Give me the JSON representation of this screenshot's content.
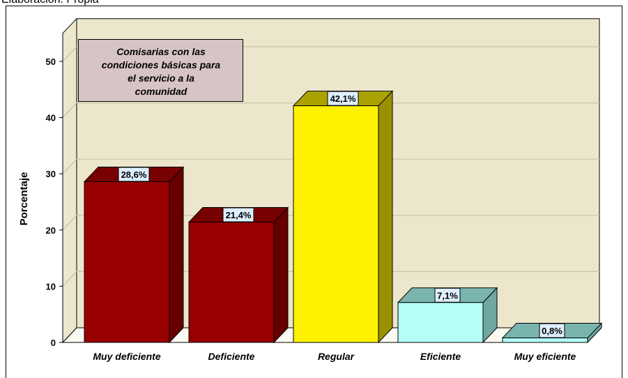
{
  "caption": "Elaboración: Propia",
  "colors": {
    "plot_back": "#ece6cc",
    "floor": "#fbfaf2",
    "grid": "#c8c2a6",
    "legend_bg": "#d7c4c6"
  },
  "chart_data": {
    "type": "bar",
    "title": "Comisarías con las condiciones básicas para el servicio a la comunidad",
    "title_lines": [
      "Comisarias con las",
      "condiciones básicas para",
      "el servicio a la",
      "comunidad"
    ],
    "ylabel": "Porcentaje",
    "xlabel": "",
    "ylim": [
      0,
      55
    ],
    "yticks": [
      0,
      10,
      20,
      30,
      40,
      50
    ],
    "grid": true,
    "legend_placement": "top-left",
    "categories": [
      "Muy deficiente",
      "Deficiente",
      "Regular",
      "Eficiente",
      "Muy eficiente"
    ],
    "values": [
      28.6,
      21.4,
      42.1,
      7.1,
      0.8
    ],
    "data_labels": [
      "28,6%",
      "21,4%",
      "42,1%",
      "7,1%",
      "0,8%"
    ],
    "bar_colors": [
      {
        "front": "#990000",
        "side": "#660000",
        "top": "#770000"
      },
      {
        "front": "#990000",
        "side": "#660000",
        "top": "#770000"
      },
      {
        "front": "#fff200",
        "side": "#999100",
        "top": "#aaa200"
      },
      {
        "front": "#b3fff8",
        "side": "#6fa8a3",
        "top": "#7ab4ae"
      },
      {
        "front": "#b3fff8",
        "side": "#6fa8a3",
        "top": "#7ab4ae"
      }
    ]
  }
}
